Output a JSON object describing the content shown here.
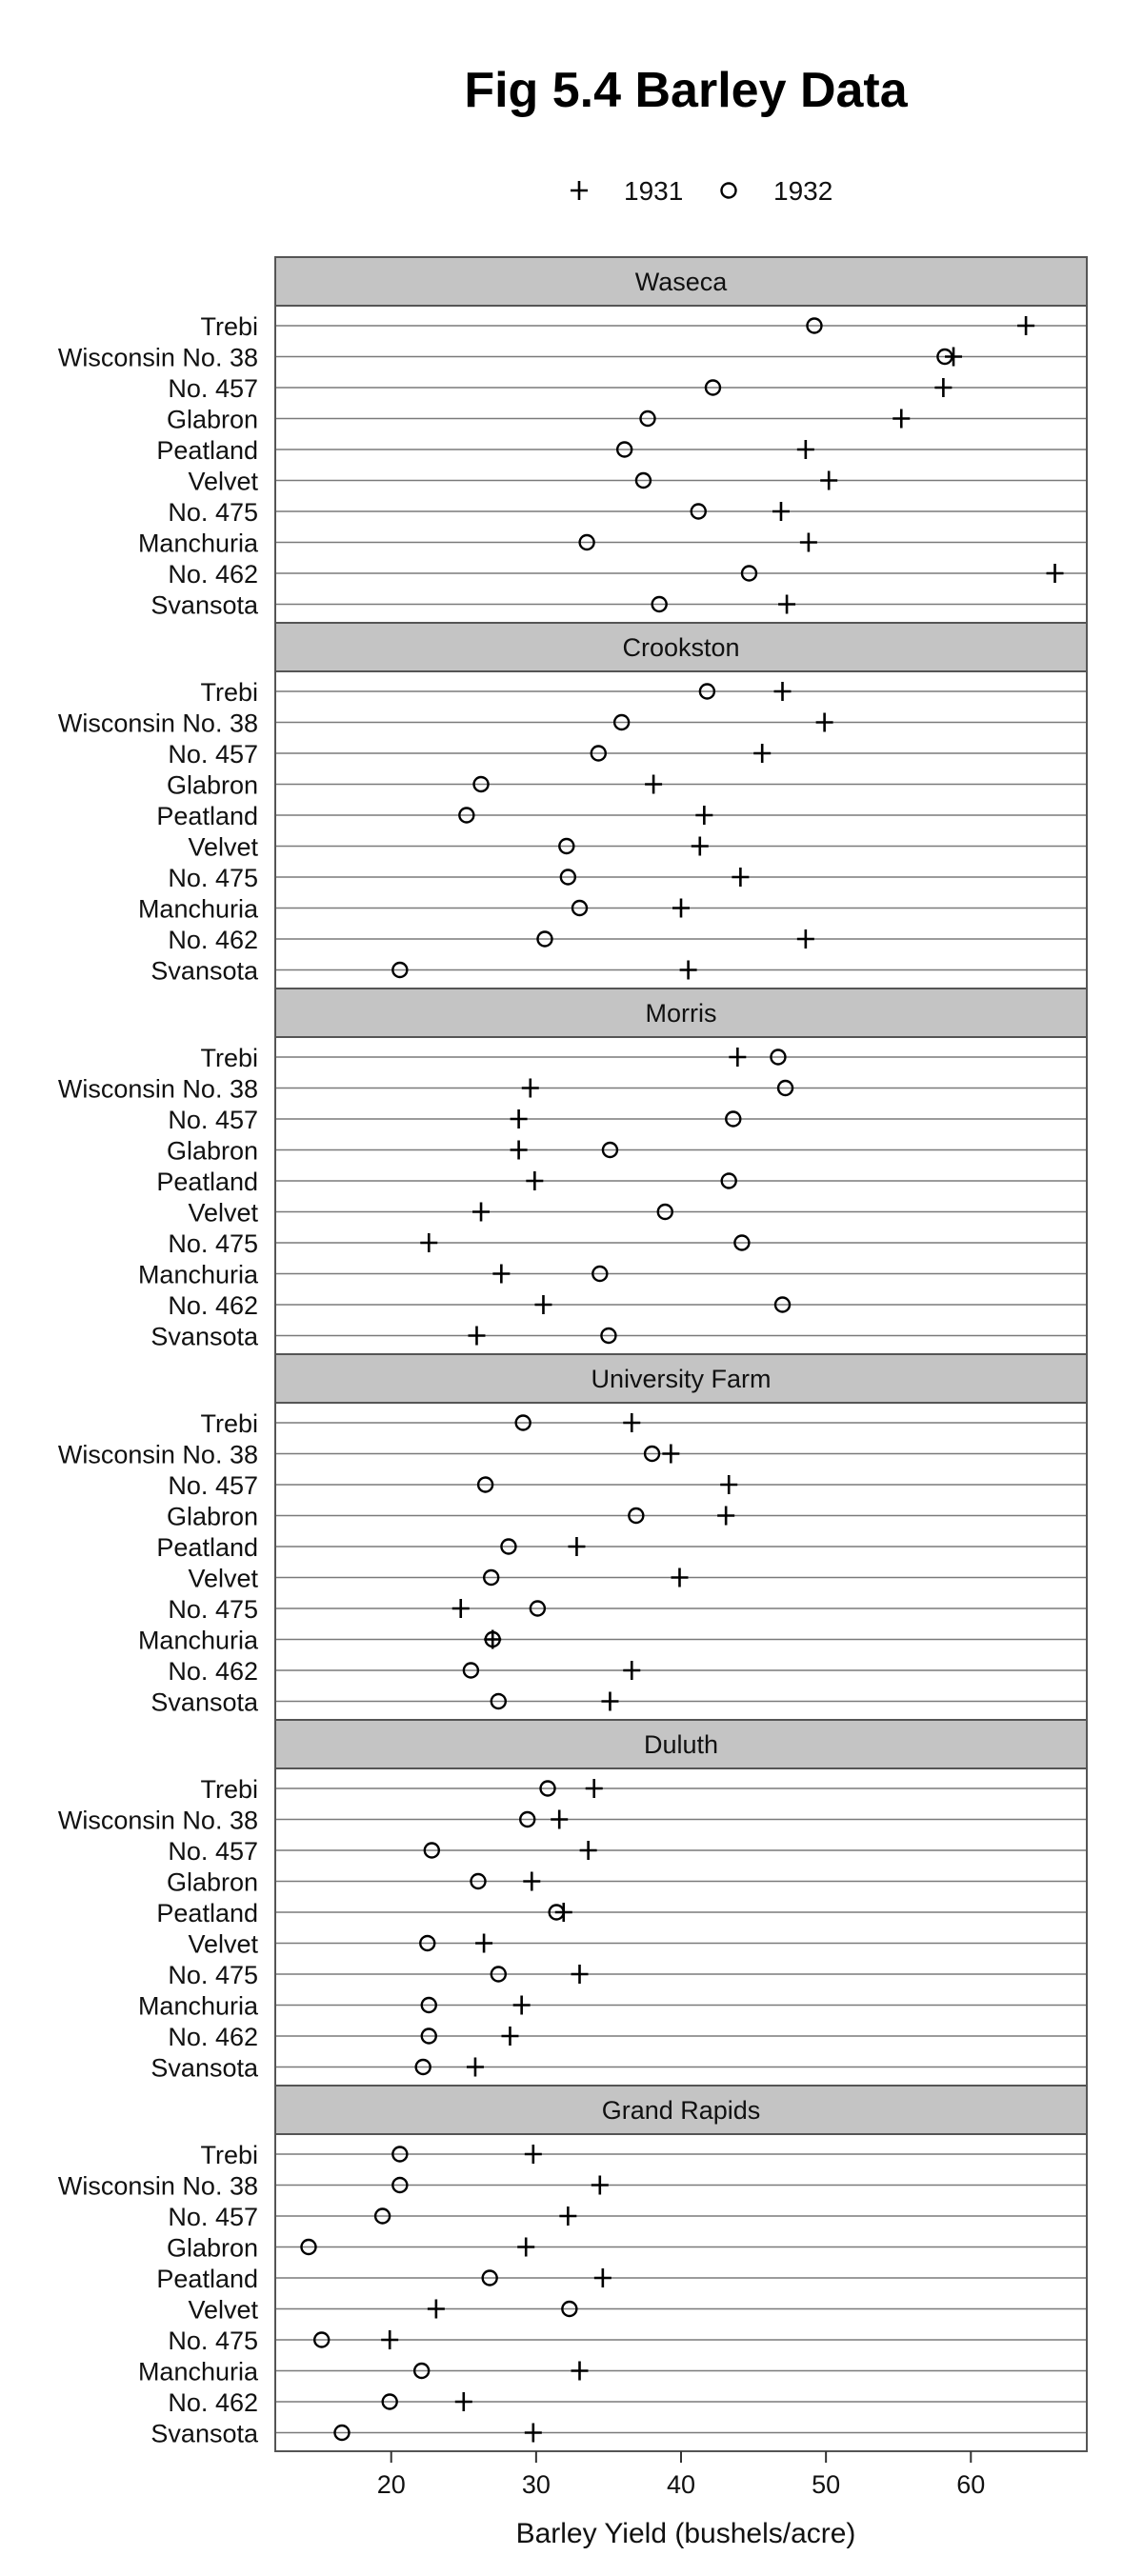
{
  "chart_data": {
    "type": "scatter",
    "title": "Fig 5.4 Barley Data",
    "xlabel": "Barley Yield (bushels/acre)",
    "xlim": [
      12,
      68
    ],
    "xticks": [
      20,
      30,
      40,
      50,
      60
    ],
    "grid": true,
    "legend_position": "top",
    "legend": [
      {
        "name": "1931",
        "marker": "plus"
      },
      {
        "name": "1932",
        "marker": "circle"
      }
    ],
    "varieties": [
      "Trebi",
      "Wisconsin No. 38",
      "No. 457",
      "Glabron",
      "Peatland",
      "Velvet",
      "No. 475",
      "Manchuria",
      "No. 462",
      "Svansota"
    ],
    "panels": [
      {
        "site": "Waseca",
        "y1931": [
          63.8,
          58.8,
          58.1,
          55.2,
          48.6,
          50.2,
          46.9,
          48.8,
          65.8,
          47.3
        ],
        "y1932": [
          49.2,
          58.2,
          42.2,
          37.7,
          36.1,
          37.4,
          41.2,
          33.5,
          44.7,
          38.5
        ]
      },
      {
        "site": "Crookston",
        "y1931": [
          47.0,
          49.9,
          45.6,
          38.1,
          41.6,
          41.3,
          44.1,
          40.0,
          48.6,
          40.5
        ],
        "y1932": [
          41.8,
          35.9,
          34.3,
          26.2,
          25.2,
          32.1,
          32.2,
          33.0,
          30.6,
          20.6
        ]
      },
      {
        "site": "Morris",
        "y1931": [
          43.9,
          29.6,
          28.8,
          28.8,
          29.9,
          26.2,
          22.6,
          27.6,
          30.5,
          25.9
        ],
        "y1932": [
          46.7,
          47.2,
          43.6,
          35.1,
          43.3,
          38.9,
          44.2,
          34.4,
          47.0,
          35.0
        ]
      },
      {
        "site": "University Farm",
        "y1931": [
          36.6,
          39.3,
          43.3,
          43.1,
          32.8,
          39.9,
          24.8,
          27.0,
          36.6,
          35.1
        ],
        "y1932": [
          29.1,
          38.0,
          26.5,
          36.9,
          28.1,
          26.9,
          30.1,
          27.0,
          25.5,
          27.4
        ]
      },
      {
        "site": "Duluth",
        "y1931": [
          34.0,
          31.6,
          33.6,
          29.7,
          31.9,
          26.4,
          33.0,
          29.0,
          28.2,
          25.8
        ],
        "y1932": [
          30.8,
          29.4,
          22.8,
          26.0,
          31.4,
          22.5,
          27.4,
          22.6,
          22.6,
          22.2
        ]
      },
      {
        "site": "Grand Rapids",
        "y1931": [
          29.8,
          34.4,
          32.2,
          29.3,
          34.6,
          23.1,
          19.9,
          33.0,
          25.0,
          29.8
        ],
        "y1932": [
          20.6,
          20.6,
          19.4,
          14.3,
          26.8,
          32.3,
          15.2,
          22.1,
          19.9,
          16.6
        ]
      }
    ]
  }
}
